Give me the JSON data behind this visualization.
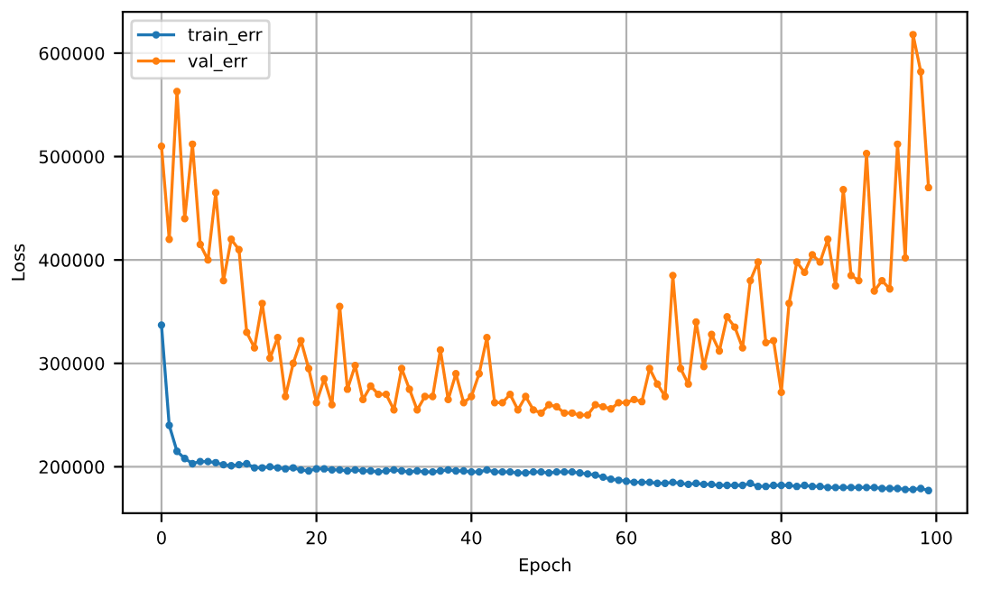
{
  "chart_data": {
    "type": "line",
    "xlabel": "Epoch",
    "ylabel": "Loss",
    "x": [
      0,
      1,
      2,
      3,
      4,
      5,
      6,
      7,
      8,
      9,
      10,
      11,
      12,
      13,
      14,
      15,
      16,
      17,
      18,
      19,
      20,
      21,
      22,
      23,
      24,
      25,
      26,
      27,
      28,
      29,
      30,
      31,
      32,
      33,
      34,
      35,
      36,
      37,
      38,
      39,
      40,
      41,
      42,
      43,
      44,
      45,
      46,
      47,
      48,
      49,
      50,
      51,
      52,
      53,
      54,
      55,
      56,
      57,
      58,
      59,
      60,
      61,
      62,
      63,
      64,
      65,
      66,
      67,
      68,
      69,
      70,
      71,
      72,
      73,
      74,
      75,
      76,
      77,
      78,
      79,
      80,
      81,
      82,
      83,
      84,
      85,
      86,
      87,
      88,
      89,
      90,
      91,
      92,
      93,
      94,
      95,
      96,
      97,
      98,
      99
    ],
    "series": [
      {
        "name": "train_err",
        "color": "#1f77b4",
        "values": [
          337000,
          240000,
          215000,
          208000,
          203000,
          205000,
          205000,
          204000,
          202000,
          201000,
          202000,
          203000,
          199000,
          199000,
          200000,
          199000,
          198000,
          199000,
          197000,
          196000,
          198000,
          198000,
          197000,
          197000,
          196000,
          197000,
          196000,
          196000,
          195000,
          196000,
          197000,
          196000,
          195000,
          196000,
          195000,
          195000,
          196000,
          197000,
          196000,
          196000,
          195000,
          195000,
          197000,
          195000,
          195000,
          195000,
          194000,
          194000,
          195000,
          195000,
          194000,
          195000,
          195000,
          195000,
          194000,
          193000,
          192000,
          190000,
          188000,
          187000,
          186000,
          185000,
          185000,
          185000,
          184000,
          184000,
          185000,
          184000,
          183000,
          184000,
          183000,
          183000,
          182000,
          182000,
          182000,
          182000,
          184000,
          181000,
          181000,
          182000,
          182000,
          182000,
          181000,
          182000,
          181000,
          181000,
          180000,
          180000,
          180000,
          180000,
          180000,
          180000,
          180000,
          179000,
          179000,
          179000,
          178000,
          178000,
          179000,
          177000
        ]
      },
      {
        "name": "val_err",
        "color": "#ff7f0e",
        "values": [
          510000,
          420000,
          563000,
          440000,
          512000,
          415000,
          400000,
          465000,
          380000,
          420000,
          410000,
          330000,
          315000,
          358000,
          305000,
          325000,
          268000,
          300000,
          322000,
          295000,
          262000,
          285000,
          260000,
          355000,
          275000,
          298000,
          265000,
          278000,
          270000,
          270000,
          255000,
          295000,
          275000,
          255000,
          268000,
          268000,
          313000,
          265000,
          290000,
          262000,
          268000,
          290000,
          325000,
          262000,
          262000,
          270000,
          255000,
          268000,
          255000,
          252000,
          260000,
          258000,
          252000,
          252000,
          250000,
          250000,
          260000,
          258000,
          256000,
          262000,
          262000,
          265000,
          263000,
          295000,
          280000,
          268000,
          385000,
          295000,
          280000,
          340000,
          297000,
          328000,
          312000,
          345000,
          335000,
          315000,
          380000,
          398000,
          320000,
          322000,
          272000,
          358000,
          398000,
          388000,
          405000,
          398000,
          420000,
          375000,
          468000,
          385000,
          380000,
          503000,
          370000,
          380000,
          372000,
          512000,
          402000,
          618000,
          582000,
          470000
        ]
      }
    ],
    "xlim": [
      -5,
      104
    ],
    "ylim": [
      155000,
      640000
    ],
    "xticks": [
      0,
      20,
      40,
      60,
      80,
      100
    ],
    "yticks": [
      200000,
      300000,
      400000,
      500000,
      600000
    ],
    "grid": true,
    "legend": "top left",
    "marker": "circle",
    "line_style": "solid"
  }
}
